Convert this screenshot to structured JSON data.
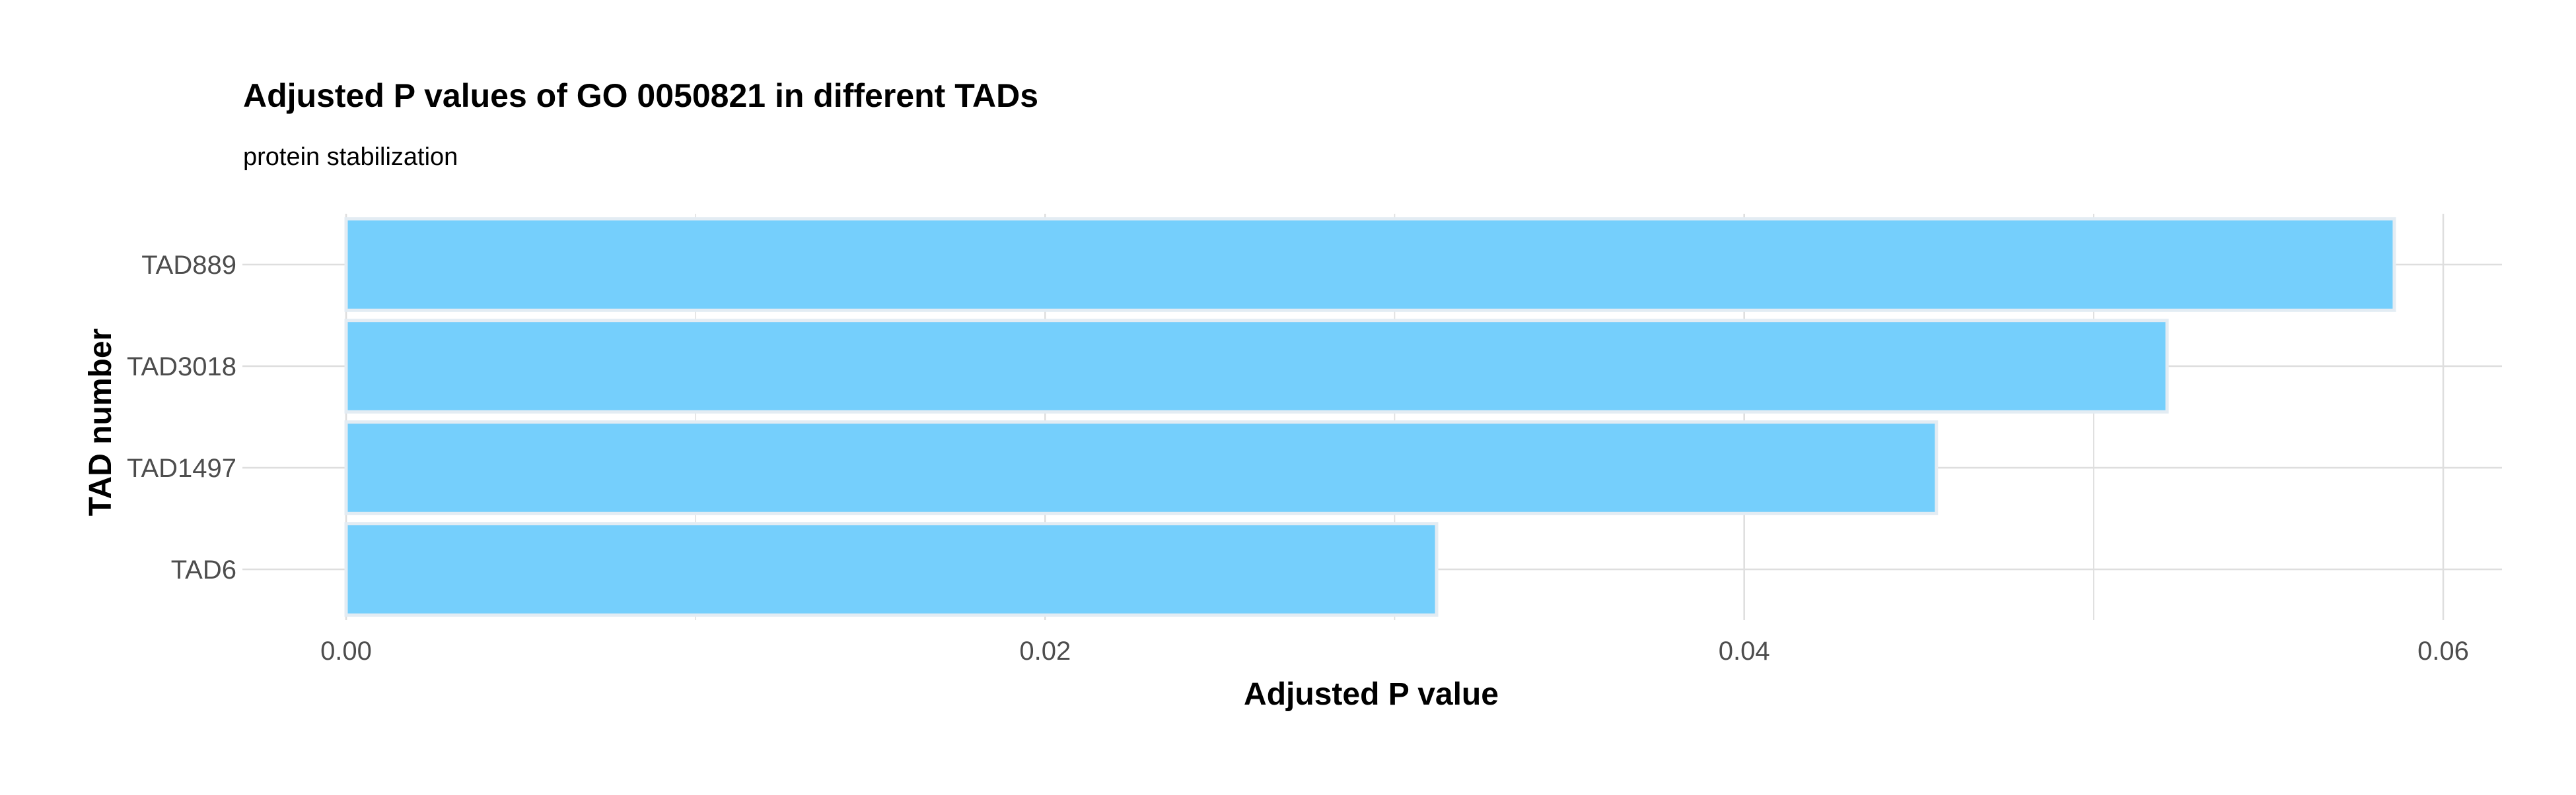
{
  "chart_data": {
    "type": "bar",
    "orientation": "horizontal",
    "title": "Adjusted P values of GO 0050821 in different TADs",
    "subtitle": "protein stabilization",
    "xlabel": "Adjusted P value",
    "ylabel": "TAD number",
    "categories": [
      "TAD889",
      "TAD3018",
      "TAD1497",
      "TAD6"
    ],
    "values": [
      0.0586,
      0.0521,
      0.0455,
      0.0312
    ],
    "xlim": [
      0,
      0.0607
    ],
    "xticks": [
      0,
      0.02,
      0.04,
      0.06
    ],
    "xtick_labels": [
      "0.00",
      "0.02",
      "0.04",
      "0.06"
    ],
    "grid": true,
    "legend": "none",
    "colors": {
      "bar_fill": "#75CFFC",
      "bar_stroke": "#E3ECF3",
      "grid": "#DEDEDE",
      "text": "#000000",
      "tick_text": "#4D4D4D"
    }
  }
}
